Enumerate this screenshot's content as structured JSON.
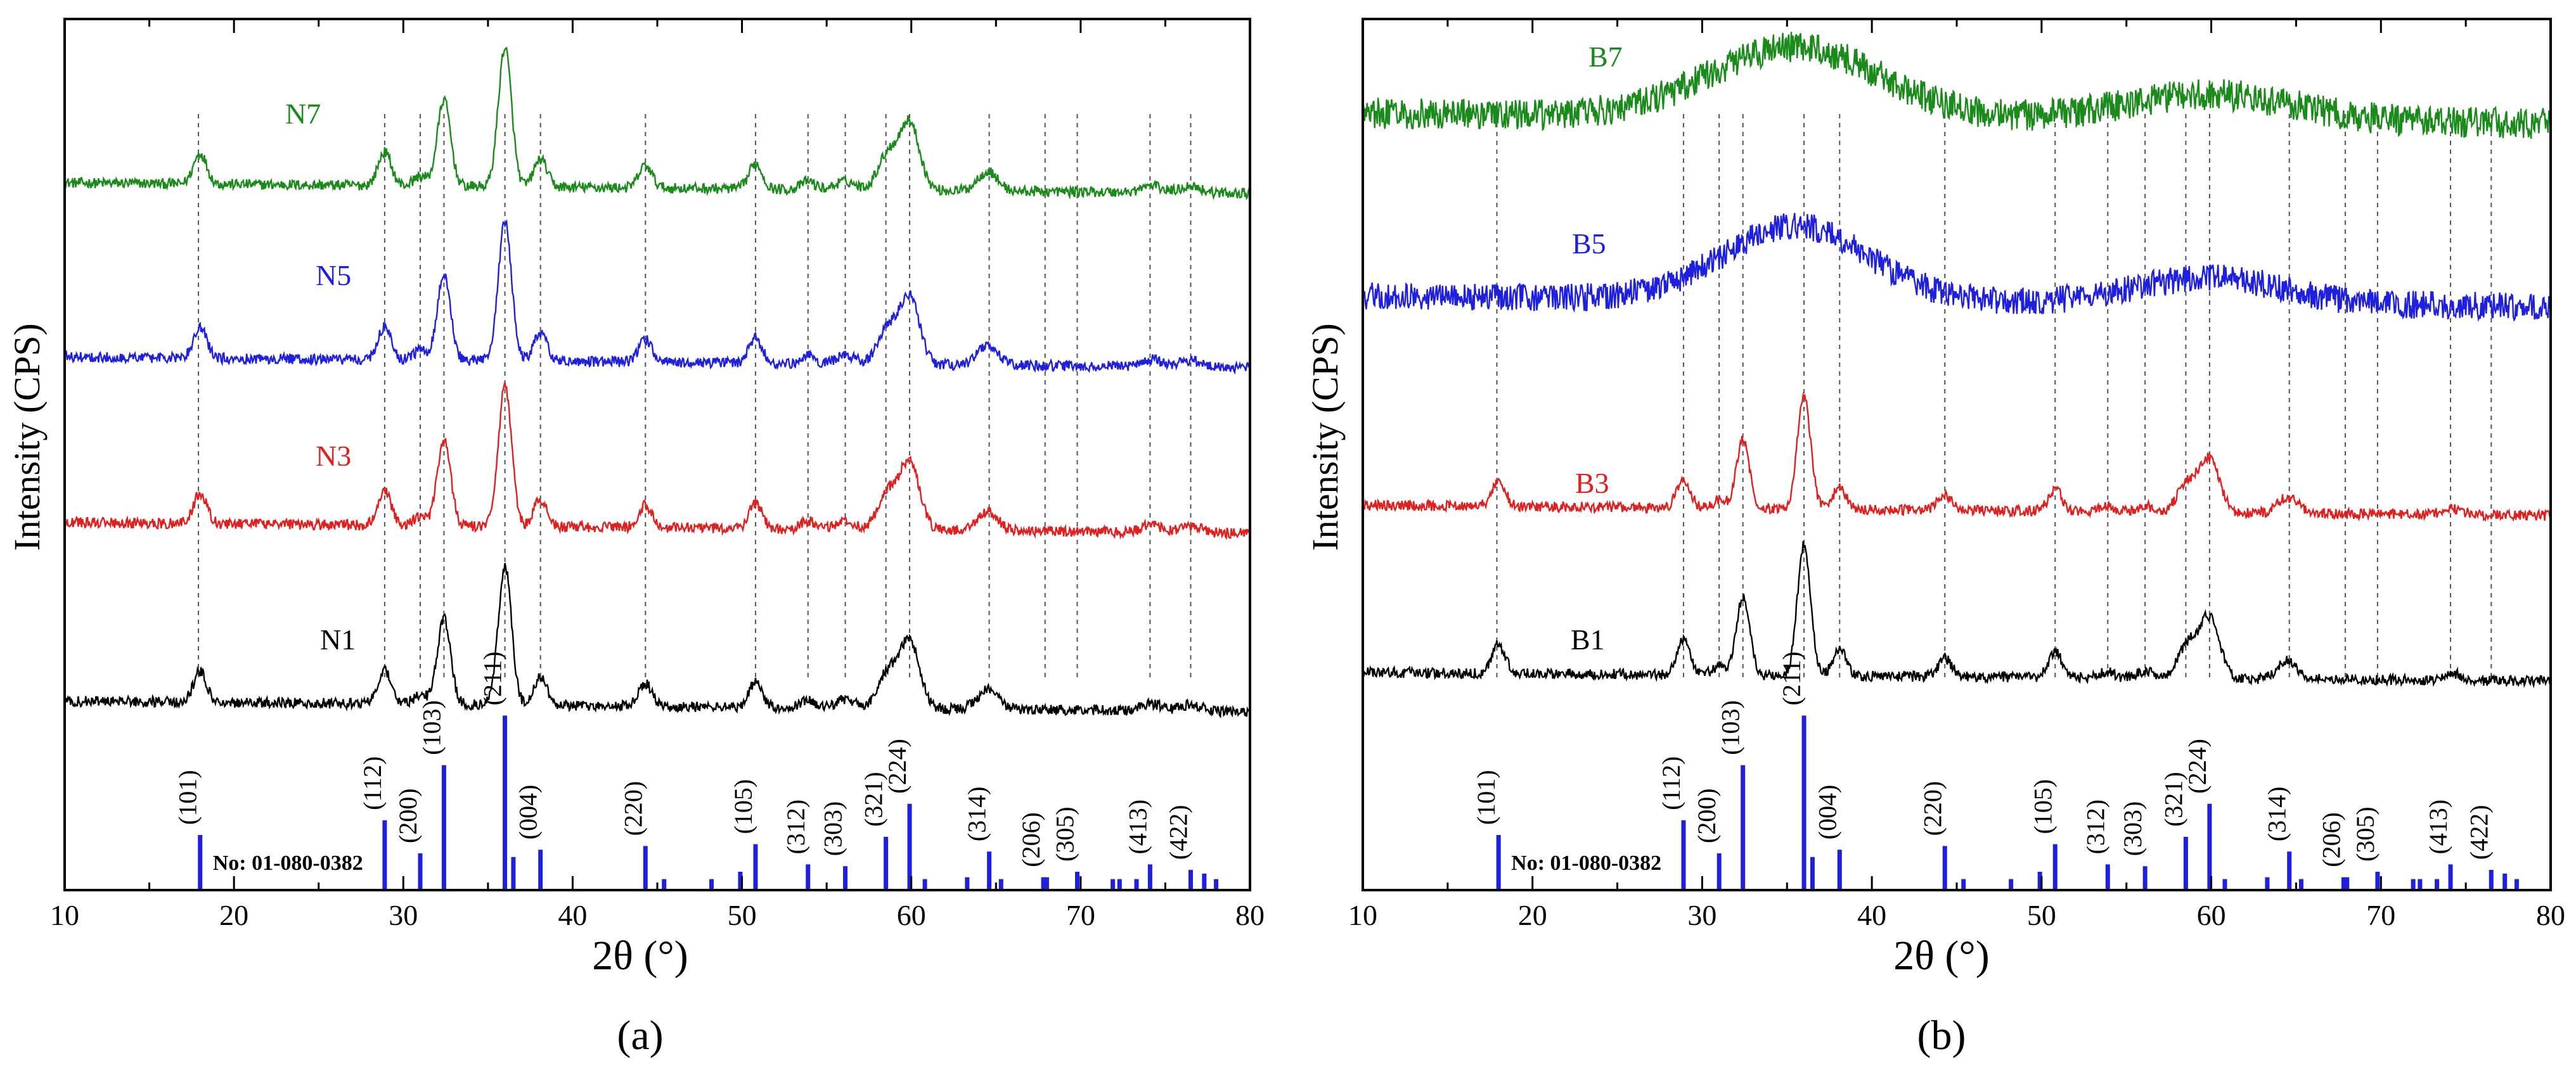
{
  "chart_data": [
    {
      "type": "line",
      "panel_label": "(a)",
      "xlabel": "2θ (°)",
      "ylabel": "Intensity (CPS)",
      "xlim": [
        10,
        80
      ],
      "x_ticks": [
        10,
        20,
        30,
        40,
        50,
        60,
        70,
        80
      ],
      "grid": false,
      "reference_pattern": "No: 01-080-0382",
      "series": [
        {
          "name": "N7",
          "color": "#1a8a1a",
          "offset": 0.8,
          "amp": 0.16,
          "noise": 0.006,
          "bg": 0.012
        },
        {
          "name": "N5",
          "color": "#1f1fe0",
          "offset": 0.6,
          "amp": 0.16,
          "noise": 0.006,
          "bg": 0.012
        },
        {
          "name": "N3",
          "color": "#e01f1f",
          "offset": 0.41,
          "amp": 0.16,
          "noise": 0.006,
          "bg": 0.012
        },
        {
          "name": "N1",
          "color": "#000000",
          "offset": 0.205,
          "amp": 0.16,
          "noise": 0.006,
          "bg": 0.012
        }
      ],
      "peaks": [
        {
          "x": 18.0,
          "h": 0.22
        },
        {
          "x": 28.9,
          "h": 0.24
        },
        {
          "x": 31.0,
          "h": 0.07
        },
        {
          "x": 32.4,
          "h": 0.62
        },
        {
          "x": 36.0,
          "h": 1.0
        },
        {
          "x": 38.1,
          "h": 0.2
        },
        {
          "x": 44.3,
          "h": 0.16
        },
        {
          "x": 50.8,
          "h": 0.18
        },
        {
          "x": 53.9,
          "h": 0.06
        },
        {
          "x": 56.1,
          "h": 0.06
        },
        {
          "x": 58.6,
          "h": 0.25
        },
        {
          "x": 59.9,
          "h": 0.48
        },
        {
          "x": 64.5,
          "h": 0.14
        },
        {
          "x": 74.2,
          "h": 0.05
        },
        {
          "x": 76.5,
          "h": 0.05
        }
      ],
      "peak_width": 0.55,
      "dashed_lines": [
        17.9,
        28.9,
        31.0,
        32.4,
        36.0,
        38.1,
        44.3,
        50.8,
        53.9,
        56.1,
        58.5,
        59.9,
        64.6,
        67.9,
        69.8,
        74.1,
        76.5
      ],
      "sticks": [
        {
          "x": 18.0,
          "h": 0.3,
          "label": "(101)"
        },
        {
          "x": 28.9,
          "h": 0.38,
          "label": "(112)"
        },
        {
          "x": 31.0,
          "h": 0.2,
          "label": "(200)"
        },
        {
          "x": 32.4,
          "h": 0.68,
          "label": "(103)"
        },
        {
          "x": 36.0,
          "h": 0.95,
          "label": "(211)"
        },
        {
          "x": 36.5,
          "h": 0.18
        },
        {
          "x": 38.1,
          "h": 0.22,
          "label": "(004)"
        },
        {
          "x": 44.3,
          "h": 0.24,
          "label": "(220)"
        },
        {
          "x": 45.4,
          "h": 0.06
        },
        {
          "x": 48.2,
          "h": 0.06
        },
        {
          "x": 49.9,
          "h": 0.1
        },
        {
          "x": 50.8,
          "h": 0.25,
          "label": "(105)"
        },
        {
          "x": 53.9,
          "h": 0.14,
          "label": "(312)"
        },
        {
          "x": 56.1,
          "h": 0.13,
          "label": "(303)"
        },
        {
          "x": 58.5,
          "h": 0.29,
          "label": "(321)"
        },
        {
          "x": 59.9,
          "h": 0.47,
          "label": "(224)"
        },
        {
          "x": 60.8,
          "h": 0.06
        },
        {
          "x": 63.3,
          "h": 0.07
        },
        {
          "x": 64.6,
          "h": 0.21,
          "label": "(314)"
        },
        {
          "x": 65.3,
          "h": 0.06
        },
        {
          "x": 67.8,
          "h": 0.07,
          "label": "(206)"
        },
        {
          "x": 68.0,
          "h": 0.07
        },
        {
          "x": 69.8,
          "h": 0.1,
          "label": "(305)"
        },
        {
          "x": 71.9,
          "h": 0.06
        },
        {
          "x": 72.3,
          "h": 0.06
        },
        {
          "x": 73.3,
          "h": 0.06
        },
        {
          "x": 74.1,
          "h": 0.14,
          "label": "(413)"
        },
        {
          "x": 76.5,
          "h": 0.11,
          "label": "(422)"
        },
        {
          "x": 77.3,
          "h": 0.09
        },
        {
          "x": 78.0,
          "h": 0.06
        }
      ]
    },
    {
      "type": "line",
      "panel_label": "(b)",
      "xlabel": "2θ (°)",
      "ylabel": "Intensity (CPS)",
      "xlim": [
        10,
        80
      ],
      "x_ticks": [
        10,
        20,
        30,
        40,
        50,
        60,
        70,
        80
      ],
      "grid": false,
      "reference_pattern": "No: 01-080-0382",
      "series": [
        {
          "name": "B7",
          "color": "#1a8a1a",
          "offset": 0.88,
          "amp": 0.0,
          "noise": 0.018,
          "bg": 0.012,
          "hump": [
            {
              "x": 35.5,
              "w": 7.0,
              "h": 0.08
            },
            {
              "x": 60.0,
              "w": 7.0,
              "h": 0.03
            }
          ]
        },
        {
          "name": "B5",
          "color": "#1f1fe0",
          "offset": 0.67,
          "amp": 0.0,
          "noise": 0.016,
          "bg": 0.012,
          "hump": [
            {
              "x": 35.5,
              "w": 6.0,
              "h": 0.085
            },
            {
              "x": 60.0,
              "w": 6.0,
              "h": 0.03
            }
          ]
        },
        {
          "name": "B3",
          "color": "#e01f1f",
          "offset": 0.43,
          "amp": 0.13,
          "noise": 0.006,
          "bg": 0.012
        },
        {
          "name": "B1",
          "color": "#000000",
          "offset": 0.24,
          "amp": 0.15,
          "noise": 0.006,
          "bg": 0.01
        }
      ],
      "peaks": [
        {
          "x": 18.0,
          "h": 0.22
        },
        {
          "x": 28.9,
          "h": 0.26
        },
        {
          "x": 31.0,
          "h": 0.07
        },
        {
          "x": 32.4,
          "h": 0.6
        },
        {
          "x": 36.0,
          "h": 1.0
        },
        {
          "x": 38.1,
          "h": 0.2
        },
        {
          "x": 44.3,
          "h": 0.14
        },
        {
          "x": 50.8,
          "h": 0.2
        },
        {
          "x": 53.9,
          "h": 0.05
        },
        {
          "x": 56.1,
          "h": 0.05
        },
        {
          "x": 58.6,
          "h": 0.25
        },
        {
          "x": 59.9,
          "h": 0.46
        },
        {
          "x": 64.5,
          "h": 0.14
        },
        {
          "x": 74.2,
          "h": 0.05
        }
      ],
      "peak_width": 0.55,
      "dashed_lines": [
        17.9,
        28.9,
        31.0,
        32.4,
        36.0,
        38.1,
        44.3,
        50.8,
        53.9,
        56.1,
        58.5,
        59.9,
        64.6,
        67.9,
        69.8,
        74.1,
        76.5
      ],
      "sticks": [
        {
          "x": 18.0,
          "h": 0.3,
          "label": "(101)"
        },
        {
          "x": 28.9,
          "h": 0.38,
          "label": "(112)"
        },
        {
          "x": 31.0,
          "h": 0.2,
          "label": "(200)"
        },
        {
          "x": 32.4,
          "h": 0.68,
          "label": "(103)"
        },
        {
          "x": 36.0,
          "h": 0.95,
          "label": "(211)"
        },
        {
          "x": 36.5,
          "h": 0.18
        },
        {
          "x": 38.1,
          "h": 0.22,
          "label": "(004)"
        },
        {
          "x": 44.3,
          "h": 0.24,
          "label": "(220)"
        },
        {
          "x": 45.4,
          "h": 0.06
        },
        {
          "x": 48.2,
          "h": 0.06
        },
        {
          "x": 49.9,
          "h": 0.1
        },
        {
          "x": 50.8,
          "h": 0.25,
          "label": "(105)"
        },
        {
          "x": 53.9,
          "h": 0.14,
          "label": "(312)"
        },
        {
          "x": 56.1,
          "h": 0.13,
          "label": "(303)"
        },
        {
          "x": 58.5,
          "h": 0.29,
          "label": "(321)"
        },
        {
          "x": 59.9,
          "h": 0.47,
          "label": "(224)"
        },
        {
          "x": 60.8,
          "h": 0.06
        },
        {
          "x": 63.3,
          "h": 0.07
        },
        {
          "x": 64.6,
          "h": 0.21,
          "label": "(314)"
        },
        {
          "x": 65.3,
          "h": 0.06
        },
        {
          "x": 67.8,
          "h": 0.07,
          "label": "(206)"
        },
        {
          "x": 68.0,
          "h": 0.07
        },
        {
          "x": 69.8,
          "h": 0.1,
          "label": "(305)"
        },
        {
          "x": 71.9,
          "h": 0.06
        },
        {
          "x": 72.3,
          "h": 0.06
        },
        {
          "x": 73.3,
          "h": 0.06
        },
        {
          "x": 74.1,
          "h": 0.14,
          "label": "(413)"
        },
        {
          "x": 76.5,
          "h": 0.11,
          "label": "(422)"
        },
        {
          "x": 77.3,
          "h": 0.09
        },
        {
          "x": 78.0,
          "h": 0.06
        }
      ]
    }
  ]
}
